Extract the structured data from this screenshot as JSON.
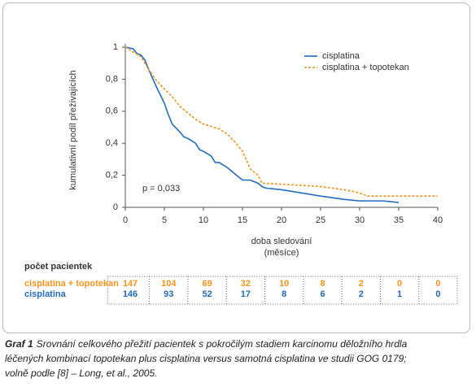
{
  "chart_data": {
    "type": "line",
    "ylabel": "kumulativní podíl přežívajících",
    "xlabel": "doba sledování",
    "xlabel_sub": "(měsíce)",
    "annotation": "p = 0,033",
    "legend": "upper right",
    "xlim": [
      0,
      40
    ],
    "xticks": [
      0,
      5,
      10,
      15,
      20,
      25,
      30,
      35,
      40
    ],
    "ylim": [
      0,
      1
    ],
    "yticks": [
      0,
      {
        "value": 0.2,
        "label": "0,2"
      },
      {
        "value": 0.4,
        "label": "0,4"
      },
      {
        "value": 0.6,
        "label": "0,6"
      },
      {
        "value": 0.8,
        "label": "0,8"
      },
      1
    ],
    "series": [
      {
        "name": "cisplatina",
        "color": "#1f6cc0",
        "dashed": false,
        "x": [
          0,
          1,
          1.5,
          2,
          2.5,
          3,
          4,
          5,
          5.5,
          6,
          7,
          7.5,
          8,
          9,
          9.5,
          10,
          11,
          11.5,
          12,
          13,
          14,
          15,
          16,
          17,
          17.5,
          18,
          20,
          25,
          28,
          30,
          33,
          35
        ],
        "values": [
          1,
          0.99,
          0.96,
          0.95,
          0.92,
          0.86,
          0.75,
          0.65,
          0.58,
          0.52,
          0.47,
          0.44,
          0.43,
          0.4,
          0.36,
          0.35,
          0.32,
          0.28,
          0.28,
          0.25,
          0.21,
          0.17,
          0.17,
          0.15,
          0.13,
          0.12,
          0.11,
          0.07,
          0.05,
          0.04,
          0.04,
          0.03
        ]
      },
      {
        "name": "cisplatina + topotekan",
        "color": "#f7941d",
        "dashed": true,
        "x": [
          0,
          1,
          2,
          3,
          4,
          5,
          6,
          7,
          8,
          9,
          10,
          12,
          13,
          14,
          15,
          16,
          17,
          17.5,
          18,
          25,
          28,
          30,
          31,
          40
        ],
        "values": [
          1,
          0.97,
          0.94,
          0.86,
          0.79,
          0.74,
          0.69,
          0.63,
          0.59,
          0.55,
          0.52,
          0.49,
          0.46,
          0.41,
          0.35,
          0.24,
          0.2,
          0.15,
          0.15,
          0.13,
          0.11,
          0.09,
          0.07,
          0.07
        ]
      }
    ]
  },
  "risk_table": {
    "title": "počet pacientek",
    "rows": [
      {
        "name": "cisplatina + topotekan",
        "color": "#f7941d",
        "values": [
          147,
          104,
          69,
          32,
          10,
          8,
          2,
          0,
          0
        ]
      },
      {
        "name": "cisplatina",
        "color": "#1f6cc0",
        "values": [
          146,
          93,
          52,
          17,
          8,
          6,
          2,
          1,
          0
        ]
      }
    ]
  },
  "caption": {
    "label": "Graf 1",
    "lines": [
      "Srovnání celkového přežití pacientek s pokročilým stadiem karcinomu děložního hrdla",
      "léčených kombinací topotekan plus cisplatina versus samotná cisplatina ve studii GOG 0179;",
      "volně podle [8] – Long, et al., 2005."
    ]
  }
}
